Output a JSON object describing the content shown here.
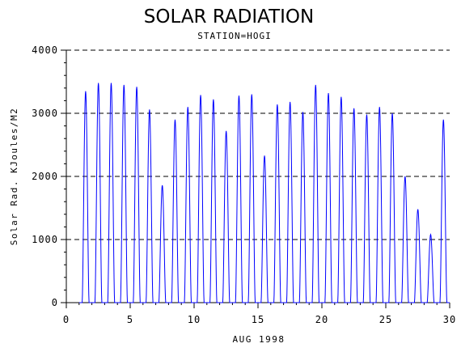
{
  "chart_data": {
    "type": "line",
    "title": "SOLAR RADIATION",
    "subtitle": "STATION=HOGI",
    "xlabel": "AUG 1998",
    "ylabel": "Solar Rad. KJoules/M2",
    "xlim": [
      0,
      30
    ],
    "ylim": [
      0,
      4000
    ],
    "xticks": [
      0,
      5,
      10,
      15,
      20,
      25,
      30
    ],
    "yticks": [
      0,
      1000,
      2000,
      3000,
      4000
    ],
    "grid": "horizontal dashed at y ticks",
    "line_color": "#0000ff",
    "daily_peaks": [
      {
        "day": 1,
        "peak": 3350
      },
      {
        "day": 2,
        "peak": 3480
      },
      {
        "day": 3,
        "peak": 3480
      },
      {
        "day": 4,
        "peak": 3450
      },
      {
        "day": 5,
        "peak": 3420
      },
      {
        "day": 6,
        "peak": 3060
      },
      {
        "day": 7,
        "peak": 1860
      },
      {
        "day": 8,
        "peak": 2900
      },
      {
        "day": 9,
        "peak": 3100
      },
      {
        "day": 10,
        "peak": 3290
      },
      {
        "day": 11,
        "peak": 3220
      },
      {
        "day": 12,
        "peak": 2720
      },
      {
        "day": 13,
        "peak": 3280
      },
      {
        "day": 14,
        "peak": 3300
      },
      {
        "day": 15,
        "peak": 2330
      },
      {
        "day": 16,
        "peak": 3140
      },
      {
        "day": 17,
        "peak": 3180
      },
      {
        "day": 18,
        "peak": 3020
      },
      {
        "day": 19,
        "peak": 3450
      },
      {
        "day": 20,
        "peak": 3320
      },
      {
        "day": 21,
        "peak": 3260
      },
      {
        "day": 22,
        "peak": 3080
      },
      {
        "day": 23,
        "peak": 2980
      },
      {
        "day": 24,
        "peak": 3100
      },
      {
        "day": 25,
        "peak": 3000
      },
      {
        "day": 26,
        "peak": 2000
      },
      {
        "day": 27,
        "peak": 1480
      },
      {
        "day": 28,
        "peak": 1080
      },
      {
        "day": 29,
        "peak": 2900
      }
    ]
  }
}
